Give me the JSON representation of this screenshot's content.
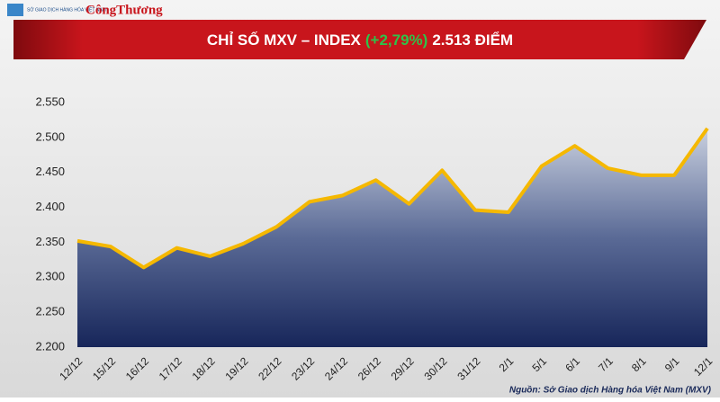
{
  "header": {
    "logo_text": "SỞ GIAO DỊCH HÀNG HÓA VIỆT NAM",
    "brand": "CôngThương"
  },
  "chart_data": {
    "type": "area",
    "title": "CHỈ SỐ MXV – INDEX",
    "title_change": "(+2,79%)",
    "title_value": "2.513 ĐIỂM",
    "source": "Nguồn: Sở Giao dịch Hàng hóa Việt Nam (MXV)",
    "categories": [
      "12/12",
      "15/12",
      "16/12",
      "17/12",
      "18/12",
      "19/12",
      "22/12",
      "23/12",
      "24/12",
      "26/12",
      "29/12",
      "30/12",
      "31/12",
      "2/1",
      "5/1",
      "6/1",
      "7/1",
      "8/1",
      "9/1",
      "12/1"
    ],
    "values": [
      2352,
      2344,
      2314,
      2342,
      2330,
      2348,
      2372,
      2408,
      2417,
      2439,
      2405,
      2453,
      2396,
      2393,
      2459,
      2488,
      2456,
      2446,
      2446,
      2513
    ],
    "color": "#f5b800",
    "ylim": [
      2200,
      2550
    ],
    "yticks": [
      {
        "value": 2200,
        "label": "2.200"
      },
      {
        "value": 2250,
        "label": "2.250"
      },
      {
        "value": 2300,
        "label": "2.300"
      },
      {
        "value": 2350,
        "label": "2.350"
      },
      {
        "value": 2400,
        "label": "2.400"
      },
      {
        "value": 2450,
        "label": "2.450"
      },
      {
        "value": 2500,
        "label": "2.500"
      },
      {
        "value": 2550,
        "label": "2.550"
      }
    ]
  }
}
